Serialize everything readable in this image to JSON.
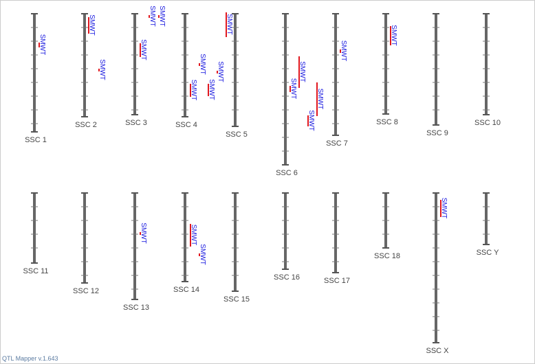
{
  "chromosomes": [
    {
      "label": "SSC 1",
      "qtls": [
        "SMWT"
      ]
    },
    {
      "label": "SSC 2",
      "qtls": [
        "SMWT",
        "SMWT"
      ]
    },
    {
      "label": "SSC 3",
      "qtls": [
        "SMWT",
        "SMWT",
        "SMWT"
      ]
    },
    {
      "label": "SSC 4",
      "qtls": [
        "SMWT",
        "SMWT",
        "SMWT",
        "SMWT",
        "SMWT"
      ]
    },
    {
      "label": "SSC 5",
      "qtls": []
    },
    {
      "label": "SSC 6",
      "qtls": [
        "SMWT",
        "SMWT",
        "SMWT",
        "SMWT"
      ]
    },
    {
      "label": "SSC 7",
      "qtls": [
        "SMWT"
      ]
    },
    {
      "label": "SSC 8",
      "qtls": [
        "SMWT"
      ]
    },
    {
      "label": "SSC 9",
      "qtls": []
    },
    {
      "label": "SSC 10",
      "qtls": []
    },
    {
      "label": "SSC 11",
      "qtls": []
    },
    {
      "label": "SSC 12",
      "qtls": []
    },
    {
      "label": "SSC 13",
      "qtls": [
        "SMWT"
      ]
    },
    {
      "label": "SSC 14",
      "qtls": [
        "SMWT",
        "SMWT"
      ]
    },
    {
      "label": "SSC 15",
      "qtls": []
    },
    {
      "label": "SSC 16",
      "qtls": []
    },
    {
      "label": "SSC 17",
      "qtls": []
    },
    {
      "label": "SSC 18",
      "qtls": []
    },
    {
      "label": "SSC X",
      "qtls": [
        "SMWT"
      ]
    },
    {
      "label": "SSC Y",
      "qtls": []
    }
  ],
  "footer": "QTL Mapper v.1.643"
}
